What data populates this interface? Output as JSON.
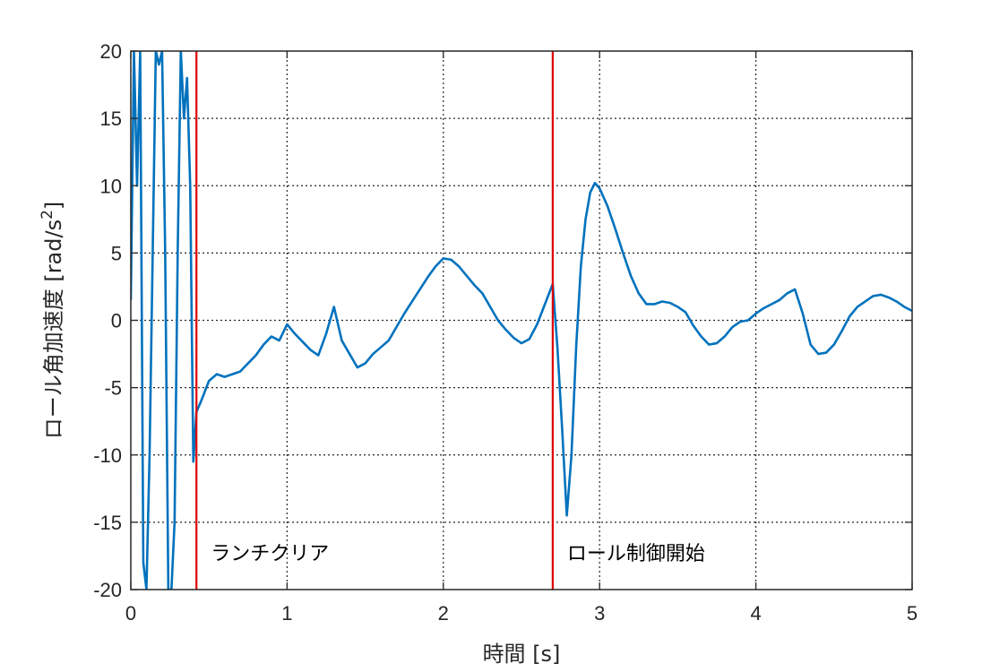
{
  "chart_data": {
    "type": "line",
    "xlabel": "時間 [s]",
    "ylabel_main": "ロール角加速度 [rad/s",
    "ylabel_sup": "2",
    "ylabel_end": "]",
    "xlim": [
      0,
      5
    ],
    "ylim": [
      -20,
      20
    ],
    "xticks": [
      0,
      1,
      2,
      3,
      4,
      5
    ],
    "yticks": [
      -20,
      -15,
      -10,
      -5,
      0,
      5,
      10,
      15,
      20
    ],
    "grid": true,
    "grid_style": "dotted",
    "colors": {
      "series": "#0072BD",
      "marker_lines": "#E00000",
      "axes": "#262626"
    },
    "series": [
      {
        "values_xy": [
          [
            0.0,
            1.5
          ],
          [
            0.02,
            20
          ],
          [
            0.04,
            10
          ],
          [
            0.06,
            20
          ],
          [
            0.08,
            -18
          ],
          [
            0.1,
            -20
          ],
          [
            0.12,
            -10
          ],
          [
            0.14,
            5
          ],
          [
            0.16,
            20
          ],
          [
            0.18,
            19
          ],
          [
            0.2,
            20
          ],
          [
            0.22,
            5
          ],
          [
            0.24,
            -20
          ],
          [
            0.26,
            -20
          ],
          [
            0.28,
            -15
          ],
          [
            0.3,
            5
          ],
          [
            0.32,
            20
          ],
          [
            0.34,
            15
          ],
          [
            0.36,
            18
          ],
          [
            0.38,
            10
          ],
          [
            0.4,
            -10.5
          ],
          [
            0.42,
            -6.8
          ],
          [
            0.45,
            -6.0
          ],
          [
            0.5,
            -4.5
          ],
          [
            0.55,
            -4.0
          ],
          [
            0.6,
            -4.2
          ],
          [
            0.65,
            -4.0
          ],
          [
            0.7,
            -3.8
          ],
          [
            0.75,
            -3.2
          ],
          [
            0.8,
            -2.6
          ],
          [
            0.85,
            -1.8
          ],
          [
            0.9,
            -1.2
          ],
          [
            0.95,
            -1.5
          ],
          [
            1.0,
            -0.3
          ],
          [
            1.05,
            -1.0
          ],
          [
            1.1,
            -1.6
          ],
          [
            1.15,
            -2.2
          ],
          [
            1.2,
            -2.6
          ],
          [
            1.25,
            -1.0
          ],
          [
            1.3,
            1.0
          ],
          [
            1.35,
            -1.5
          ],
          [
            1.4,
            -2.5
          ],
          [
            1.45,
            -3.5
          ],
          [
            1.5,
            -3.2
          ],
          [
            1.55,
            -2.5
          ],
          [
            1.6,
            -2.0
          ],
          [
            1.65,
            -1.5
          ],
          [
            1.7,
            -0.5
          ],
          [
            1.75,
            0.5
          ],
          [
            1.8,
            1.4
          ],
          [
            1.85,
            2.3
          ],
          [
            1.9,
            3.2
          ],
          [
            1.95,
            4.0
          ],
          [
            2.0,
            4.6
          ],
          [
            2.05,
            4.5
          ],
          [
            2.1,
            4.0
          ],
          [
            2.15,
            3.3
          ],
          [
            2.2,
            2.6
          ],
          [
            2.25,
            2.0
          ],
          [
            2.3,
            1.0
          ],
          [
            2.35,
            0.0
          ],
          [
            2.4,
            -0.7
          ],
          [
            2.45,
            -1.3
          ],
          [
            2.5,
            -1.7
          ],
          [
            2.55,
            -1.4
          ],
          [
            2.6,
            -0.3
          ],
          [
            2.65,
            1.2
          ],
          [
            2.7,
            2.7
          ],
          [
            2.73,
            -2.0
          ],
          [
            2.76,
            -8.0
          ],
          [
            2.79,
            -14.5
          ],
          [
            2.82,
            -10.0
          ],
          [
            2.85,
            -2.0
          ],
          [
            2.88,
            4.0
          ],
          [
            2.91,
            7.5
          ],
          [
            2.94,
            9.5
          ],
          [
            2.97,
            10.2
          ],
          [
            3.0,
            9.8
          ],
          [
            3.05,
            8.5
          ],
          [
            3.1,
            6.8
          ],
          [
            3.15,
            5.0
          ],
          [
            3.2,
            3.3
          ],
          [
            3.25,
            2.0
          ],
          [
            3.3,
            1.2
          ],
          [
            3.35,
            1.2
          ],
          [
            3.4,
            1.4
          ],
          [
            3.45,
            1.3
          ],
          [
            3.5,
            1.0
          ],
          [
            3.55,
            0.6
          ],
          [
            3.6,
            -0.4
          ],
          [
            3.65,
            -1.2
          ],
          [
            3.7,
            -1.8
          ],
          [
            3.75,
            -1.7
          ],
          [
            3.8,
            -1.2
          ],
          [
            3.85,
            -0.5
          ],
          [
            3.9,
            -0.1
          ],
          [
            3.95,
            0.0
          ],
          [
            4.0,
            0.5
          ],
          [
            4.05,
            0.9
          ],
          [
            4.1,
            1.2
          ],
          [
            4.15,
            1.5
          ],
          [
            4.2,
            2.0
          ],
          [
            4.25,
            2.3
          ],
          [
            4.3,
            0.5
          ],
          [
            4.35,
            -1.8
          ],
          [
            4.4,
            -2.5
          ],
          [
            4.45,
            -2.4
          ],
          [
            4.5,
            -1.8
          ],
          [
            4.55,
            -0.8
          ],
          [
            4.6,
            0.3
          ],
          [
            4.65,
            1.0
          ],
          [
            4.7,
            1.4
          ],
          [
            4.75,
            1.8
          ],
          [
            4.8,
            1.9
          ],
          [
            4.85,
            1.7
          ],
          [
            4.9,
            1.4
          ],
          [
            4.95,
            1.0
          ],
          [
            5.0,
            0.7
          ]
        ]
      }
    ],
    "vlines": [
      {
        "x": 0.42,
        "label": "ランチクリア"
      },
      {
        "x": 2.7,
        "label": "ロール制御開始"
      }
    ]
  }
}
